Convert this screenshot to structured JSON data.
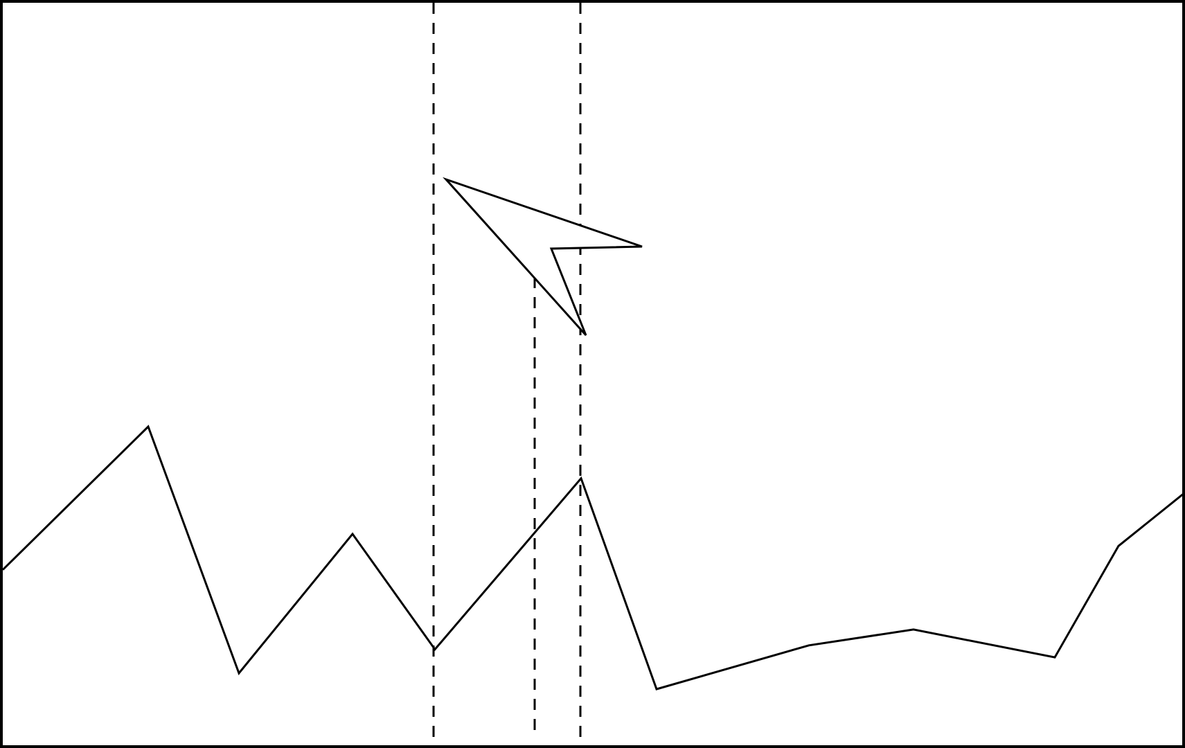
{
  "stroke_color": "#000000",
  "background_color": "#ffffff",
  "line_series": {
    "points": [
      [
        0,
        0.3
      ],
      [
        1,
        0.66
      ],
      [
        2,
        0.04
      ],
      [
        3,
        0.39
      ],
      [
        4,
        0.1
      ],
      [
        5,
        0.53
      ],
      [
        6,
        0.0
      ],
      [
        7,
        0.11
      ],
      [
        8,
        0.15
      ],
      [
        9,
        0.08
      ],
      [
        10,
        0.36
      ],
      [
        11,
        0.49
      ]
    ]
  },
  "pointer_icon": "mouse-cursor-arrow-icon",
  "guides": {
    "count": 3,
    "style": "dashed"
  }
}
